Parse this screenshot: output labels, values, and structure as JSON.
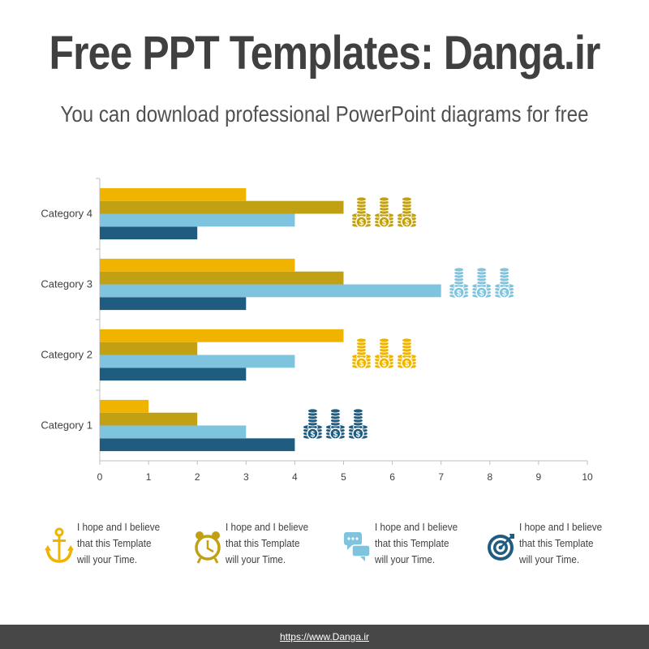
{
  "header": {
    "title": "Free PPT Templates: Danga.ir",
    "subtitle": "You can download professional PowerPoint diagrams for free"
  },
  "chart_data": {
    "type": "bar",
    "orientation": "horizontal",
    "categories": [
      "Category 1",
      "Category 2",
      "Category 3",
      "Category 4"
    ],
    "series": [
      {
        "values": [
          4,
          3,
          3,
          2
        ],
        "color": "#1f5c80"
      },
      {
        "values": [
          3,
          4,
          7,
          4
        ],
        "color": "#7ec4de"
      },
      {
        "values": [
          2,
          2,
          5,
          5
        ],
        "color": "#c2a013"
      },
      {
        "values": [
          1,
          5,
          4,
          3
        ],
        "color": "#f0b400"
      }
    ],
    "xlim": [
      0,
      10
    ],
    "xticks": [
      "0",
      "1",
      "2",
      "3",
      "4",
      "5",
      "6",
      "7",
      "8",
      "9",
      "10"
    ],
    "grid": false,
    "annotations": [
      {
        "category": "Category 1",
        "icon": "coin-stacks-icon",
        "color": "#1f5c80"
      },
      {
        "category": "Category 2",
        "icon": "coin-stacks-icon",
        "color": "#f0b400"
      },
      {
        "category": "Category 3",
        "icon": "coin-stacks-icon",
        "color": "#7ec4de"
      },
      {
        "category": "Category 4",
        "icon": "coin-stacks-icon",
        "color": "#c2a013"
      }
    ]
  },
  "features": [
    {
      "icon": "anchor-icon",
      "color": "#f0b400",
      "line1": "I hope and I believe",
      "line2": "that this Template",
      "line3": "will your Time."
    },
    {
      "icon": "alarm-clock-icon",
      "color": "#c2a013",
      "line1": "I hope and I believe",
      "line2": "that this Template",
      "line3": "will your Time."
    },
    {
      "icon": "chat-bubbles-icon",
      "color": "#7ec4de",
      "line1": "I hope and I believe",
      "line2": "that this Template",
      "line3": "will your Time."
    },
    {
      "icon": "target-icon",
      "color": "#1f5c80",
      "line1": "I hope and I believe",
      "line2": "that this Template",
      "line3": "will your Time."
    }
  ],
  "footer": {
    "link": "https://www.Danga.ir"
  }
}
